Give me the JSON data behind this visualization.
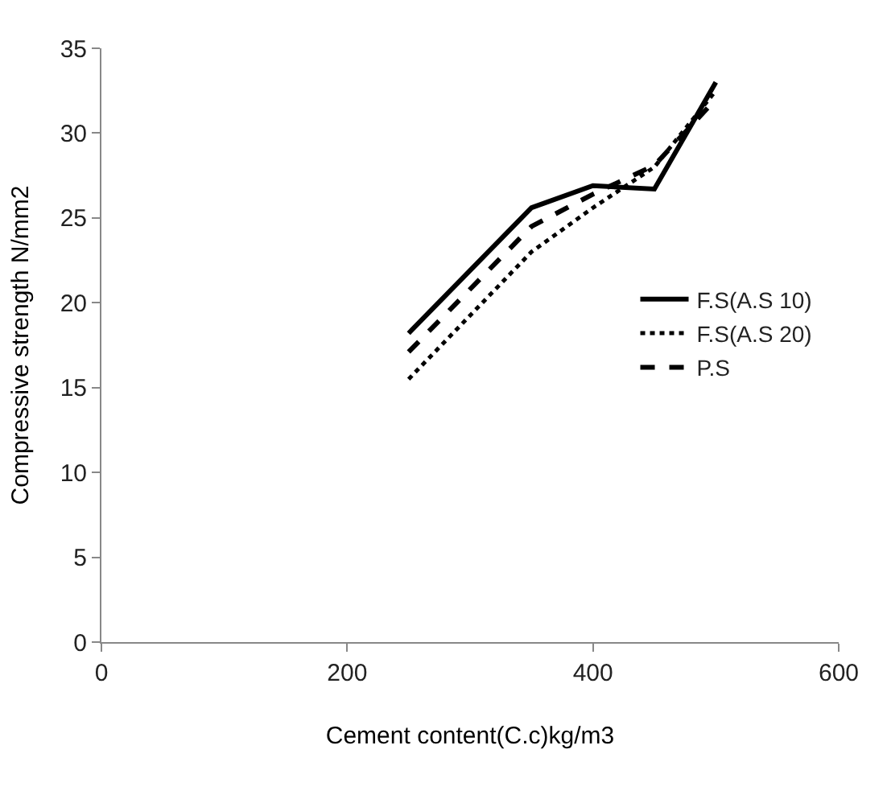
{
  "chart_data": {
    "type": "line",
    "xlabel": "Cement content(C.c)kg/m3",
    "ylabel": "Compressive strength N/mm2",
    "x": [
      250,
      350,
      400,
      450,
      500
    ],
    "series": [
      {
        "name": "F.S(A.S 10)",
        "color": "#000000",
        "line_style": "solid",
        "values": [
          18.2,
          25.6,
          26.9,
          26.7,
          33.0
        ]
      },
      {
        "name": "F.S(A.S 20)",
        "color": "#000000",
        "line_style": "dotted",
        "values": [
          15.5,
          23.0,
          25.6,
          28.0,
          32.5
        ]
      },
      {
        "name": "P.S",
        "color": "#000000",
        "line_style": "dashed",
        "values": [
          17.1,
          24.5,
          26.4,
          28.1,
          32.0
        ]
      }
    ],
    "xlim": [
      0,
      600
    ],
    "xticks": [
      0,
      200,
      400,
      600
    ],
    "ylim": [
      0,
      35
    ],
    "yticks": [
      0,
      5,
      10,
      15,
      20,
      25,
      30,
      35
    ],
    "grid": false,
    "legend": "right",
    "marker": "none"
  }
}
